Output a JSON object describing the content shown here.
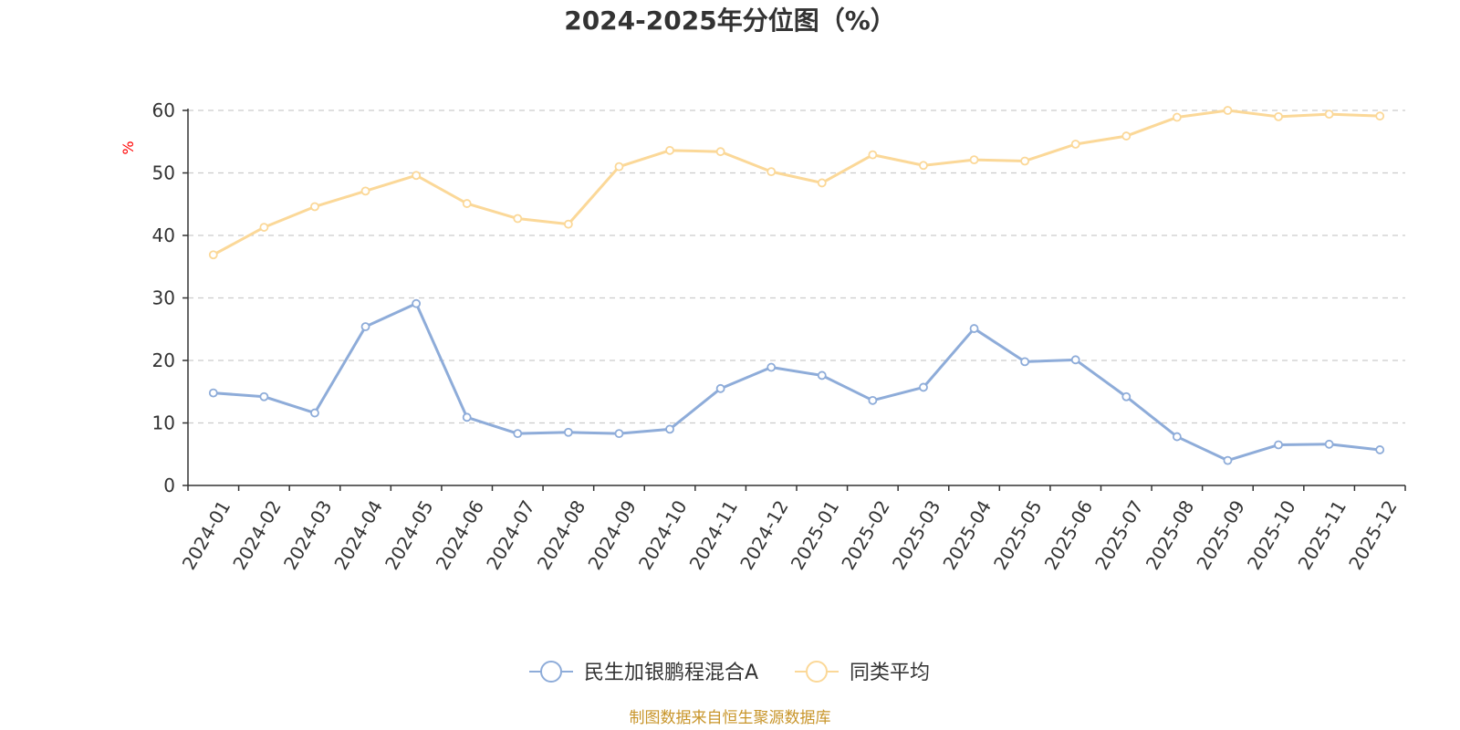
{
  "chart_data": {
    "type": "line",
    "title": "2024-2025年分位图（%）",
    "xlabel": "",
    "ylabel": "%",
    "ylim": [
      0,
      60
    ],
    "yticks": [
      0,
      10,
      20,
      30,
      40,
      50,
      60
    ],
    "grid": true,
    "legend_position": "bottom-center",
    "categories": [
      "2024-01",
      "2024-02",
      "2024-03",
      "2024-04",
      "2024-05",
      "2024-06",
      "2024-07",
      "2024-08",
      "2024-09",
      "2024-10",
      "2024-11",
      "2024-12",
      "2025-01",
      "2025-02",
      "2025-03",
      "2025-04",
      "2025-05",
      "2025-06",
      "2025-07",
      "2025-08",
      "2025-09",
      "2025-10",
      "2025-11",
      "2025-12"
    ],
    "series": [
      {
        "name": "民生加银鹏程混合A",
        "color": "#8eacd9",
        "values": [
          14.8,
          14.2,
          11.6,
          25.4,
          29.1,
          10.9,
          8.3,
          8.5,
          8.3,
          9.0,
          15.5,
          18.9,
          17.6,
          13.6,
          15.7,
          25.1,
          19.8,
          20.1,
          14.2,
          7.8,
          4.0,
          6.5,
          6.6,
          5.7
        ]
      },
      {
        "name": "同类平均",
        "color": "#fbd898",
        "values": [
          36.9,
          41.3,
          44.6,
          47.1,
          49.6,
          45.1,
          42.7,
          41.8,
          51.0,
          53.6,
          53.4,
          50.2,
          48.4,
          52.9,
          51.2,
          52.1,
          51.9,
          54.6,
          55.9,
          58.9,
          60.0,
          59.0,
          59.4,
          59.1
        ]
      }
    ]
  },
  "source": "制图数据来自恒生聚源数据库",
  "colors": {
    "axis": "#333333",
    "grid": "#cccccc",
    "ylabel": "#ff0000",
    "source": "#c8952a"
  }
}
